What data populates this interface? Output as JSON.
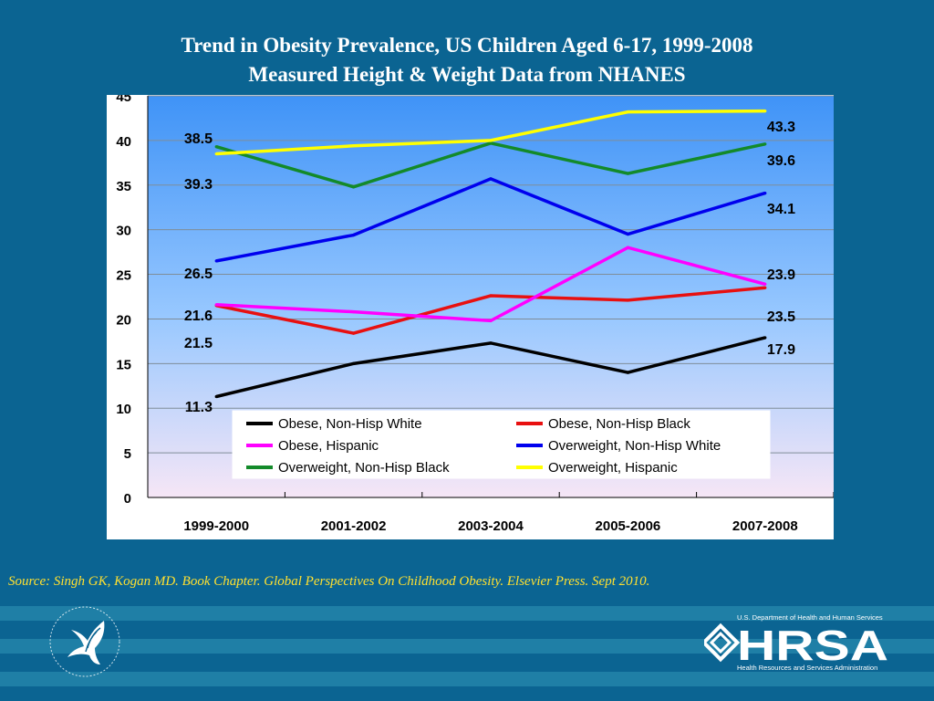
{
  "title": {
    "line1": "Trend in Obesity Prevalence, US Children Aged 6-17, 1999-2008",
    "line2": "Measured Height & Weight Data from NHANES"
  },
  "source": "Source: Singh GK, Kogan MD. Book Chapter. Global Perspectives On Childhood Obesity. Elsevier Press. Sept 2010.",
  "logos": {
    "hrsa_top": "U.S. Department of Health and Human Services",
    "hrsa_word": "HRSA",
    "hrsa_bottom": "Health Resources and Services Administration"
  },
  "colors": {
    "background": "#0b6492",
    "title": "#ffffff",
    "source": "#ffe030"
  },
  "chart_data": {
    "type": "line",
    "title": "Trend in Obesity Prevalence, US Children Aged 6-17, 1999-2008",
    "subtitle": "Measured Height & Weight Data from NHANES",
    "xlabel": "",
    "ylabel": "",
    "categories": [
      "1999-2000",
      "2001-2002",
      "2003-2004",
      "2005-2006",
      "2007-2008"
    ],
    "ylim": [
      0,
      45
    ],
    "yticks": [
      0,
      5,
      10,
      15,
      20,
      25,
      30,
      35,
      40,
      45
    ],
    "grid": true,
    "legend_position": "bottom-right inside",
    "series": [
      {
        "name": "Obese, Non-Hisp White",
        "color": "#000000",
        "values": [
          11.3,
          15.0,
          17.3,
          14.0,
          17.9
        ]
      },
      {
        "name": "Obese, Non-Hisp Black",
        "color": "#e81010",
        "values": [
          21.5,
          18.4,
          22.6,
          22.1,
          23.5
        ]
      },
      {
        "name": "Obese, Hispanic",
        "color": "#ff00ff",
        "values": [
          21.6,
          20.8,
          19.8,
          28.0,
          23.9
        ]
      },
      {
        "name": "Overweight, Non-Hisp White",
        "color": "#0000ee",
        "values": [
          26.5,
          29.4,
          35.7,
          29.5,
          34.1
        ]
      },
      {
        "name": "Overweight, Non-Hisp Black",
        "color": "#138a2a",
        "values": [
          39.3,
          34.8,
          39.7,
          36.3,
          39.6
        ]
      },
      {
        "name": "Overweight, Hispanic",
        "color": "#ffff00",
        "values": [
          38.5,
          39.4,
          40.0,
          43.2,
          43.3
        ]
      }
    ],
    "data_labels": [
      {
        "series": "Overweight, Hispanic",
        "point": 0,
        "text": "38.5"
      },
      {
        "series": "Overweight, Non-Hisp Black",
        "point": 0,
        "text": "39.3"
      },
      {
        "series": "Overweight, Non-Hisp White",
        "point": 0,
        "text": "26.5"
      },
      {
        "series": "Obese, Hispanic",
        "point": 0,
        "text": "21.6"
      },
      {
        "series": "Obese, Non-Hisp Black",
        "point": 0,
        "text": "21.5"
      },
      {
        "series": "Obese, Non-Hisp White",
        "point": 0,
        "text": "11.3"
      },
      {
        "series": "Overweight, Hispanic",
        "point": 4,
        "text": "43.3"
      },
      {
        "series": "Overweight, Non-Hisp Black",
        "point": 4,
        "text": "39.6"
      },
      {
        "series": "Overweight, Non-Hisp White",
        "point": 4,
        "text": "34.1"
      },
      {
        "series": "Obese, Hispanic",
        "point": 4,
        "text": "23.9"
      },
      {
        "series": "Obese, Non-Hisp Black",
        "point": 4,
        "text": "23.5"
      },
      {
        "series": "Obese, Non-Hisp White",
        "point": 4,
        "text": "17.9"
      }
    ]
  }
}
